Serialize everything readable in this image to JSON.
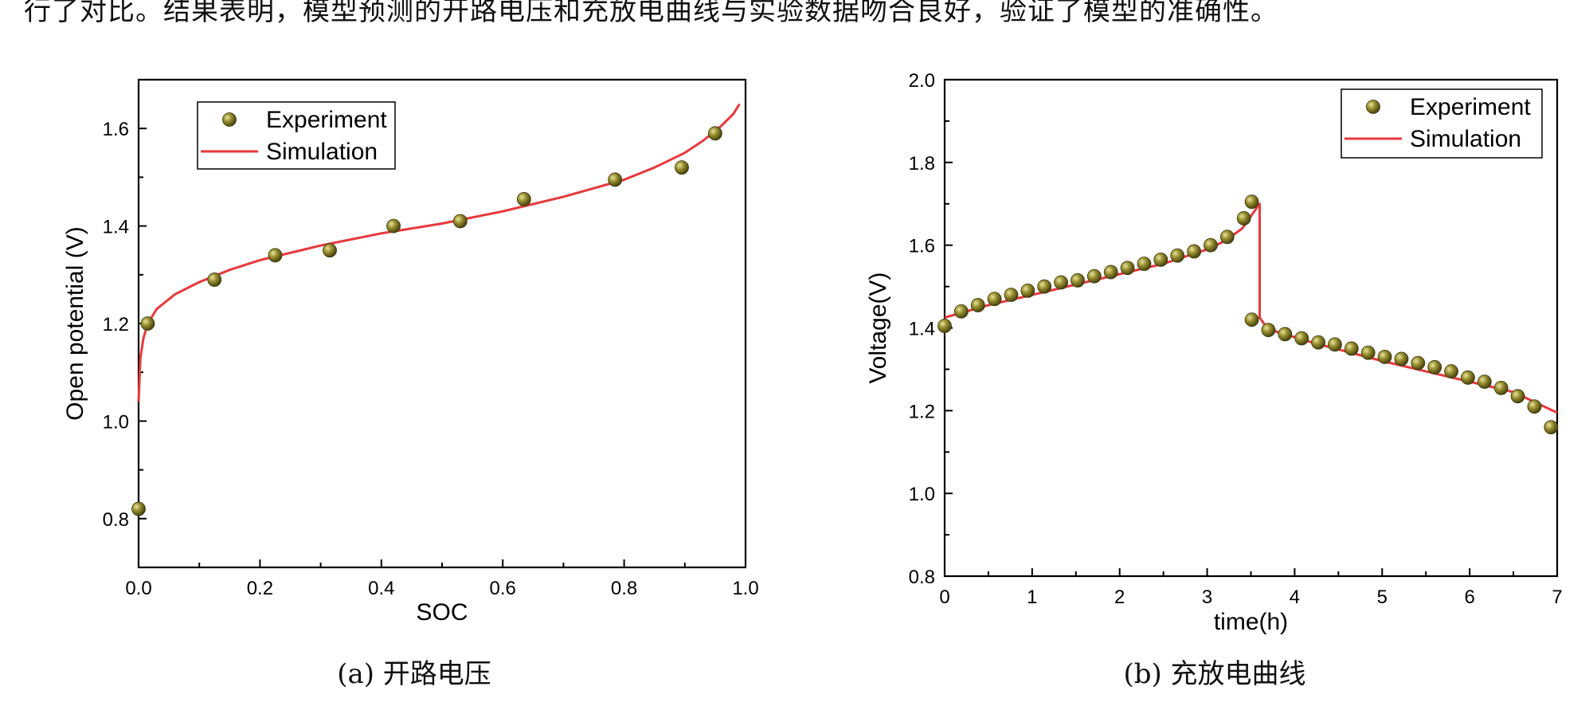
{
  "page": {
    "top_text": "行了对比。结果表明，模型预测的开路电压和充放电曲线与实验数据吻合良好，验证了模型的准确性。"
  },
  "colors": {
    "experiment": "#7a7420",
    "experiment_highlight": "#e8e4a0",
    "simulation": "#e8383d"
  },
  "chart_data": [
    {
      "type": "line",
      "caption": "(a)  开路电压",
      "xlabel": "SOC",
      "ylabel": "Open potential (V)",
      "xlim": [
        0.0,
        1.0
      ],
      "ylim": [
        0.7,
        1.7
      ],
      "xticks": [
        "0.0",
        "0.2",
        "0.4",
        "0.6",
        "0.8",
        "1.0"
      ],
      "yticks": [
        "0.8",
        "1.0",
        "1.2",
        "1.4",
        "1.6"
      ],
      "legend": {
        "position": "top-left",
        "entries": [
          "Experiment",
          "Simulation"
        ]
      },
      "series": [
        {
          "name": "Experiment",
          "kind": "scatter",
          "x": [
            0.0,
            0.015,
            0.125,
            0.225,
            0.315,
            0.42,
            0.53,
            0.635,
            0.785,
            0.895,
            0.95
          ],
          "y": [
            0.82,
            1.2,
            1.29,
            1.34,
            1.35,
            1.4,
            1.41,
            1.455,
            1.495,
            1.52,
            1.59
          ]
        },
        {
          "name": "Simulation",
          "kind": "line",
          "x": [
            0.0,
            0.003,
            0.008,
            0.015,
            0.03,
            0.06,
            0.1,
            0.15,
            0.2,
            0.3,
            0.4,
            0.5,
            0.6,
            0.7,
            0.8,
            0.85,
            0.9,
            0.93,
            0.96,
            0.98,
            0.99
          ],
          "y": [
            1.04,
            1.13,
            1.17,
            1.2,
            1.23,
            1.26,
            1.285,
            1.31,
            1.33,
            1.36,
            1.385,
            1.405,
            1.43,
            1.46,
            1.495,
            1.52,
            1.55,
            1.575,
            1.605,
            1.63,
            1.65
          ]
        }
      ]
    },
    {
      "type": "line",
      "caption": "(b)  充放电曲线",
      "xlabel": "time(h)",
      "ylabel": "Voltage(V)",
      "xlim": [
        0,
        7
      ],
      "ylim": [
        0.8,
        2.0
      ],
      "xticks": [
        "0",
        "1",
        "2",
        "3",
        "4",
        "5",
        "6",
        "7"
      ],
      "yticks": [
        "0.8",
        "1.0",
        "1.2",
        "1.4",
        "1.6",
        "1.8",
        "2.0"
      ],
      "legend": {
        "position": "top-right",
        "entries": [
          "Experiment",
          "Simulation"
        ]
      },
      "series": [
        {
          "name": "Experiment",
          "kind": "scatter",
          "x": [
            0.0,
            0.19,
            0.38,
            0.57,
            0.76,
            0.95,
            1.14,
            1.33,
            1.52,
            1.71,
            1.9,
            2.09,
            2.28,
            2.47,
            2.66,
            2.85,
            3.04,
            3.23,
            3.42,
            3.51,
            3.51,
            3.7,
            3.89,
            4.08,
            4.27,
            4.46,
            4.65,
            4.84,
            5.03,
            5.22,
            5.41,
            5.6,
            5.79,
            5.98,
            6.17,
            6.36,
            6.55,
            6.74,
            6.93
          ],
          "y": [
            1.405,
            1.44,
            1.455,
            1.47,
            1.48,
            1.49,
            1.5,
            1.51,
            1.515,
            1.525,
            1.535,
            1.545,
            1.555,
            1.565,
            1.575,
            1.585,
            1.6,
            1.62,
            1.665,
            1.705,
            1.42,
            1.395,
            1.385,
            1.375,
            1.365,
            1.36,
            1.35,
            1.34,
            1.33,
            1.325,
            1.315,
            1.305,
            1.295,
            1.28,
            1.27,
            1.255,
            1.235,
            1.21,
            1.16
          ]
        },
        {
          "name": "Simulation",
          "kind": "line",
          "x": [
            0.0,
            0.5,
            1.0,
            1.5,
            2.0,
            2.5,
            3.0,
            3.2,
            3.4,
            3.6,
            3.6,
            3.65,
            3.8,
            4.2,
            5.0,
            6.0,
            6.5,
            7.0
          ],
          "y": [
            1.425,
            1.455,
            1.48,
            1.505,
            1.53,
            1.555,
            1.59,
            1.61,
            1.64,
            1.7,
            1.425,
            1.41,
            1.39,
            1.365,
            1.32,
            1.27,
            1.245,
            1.195
          ]
        }
      ]
    }
  ]
}
